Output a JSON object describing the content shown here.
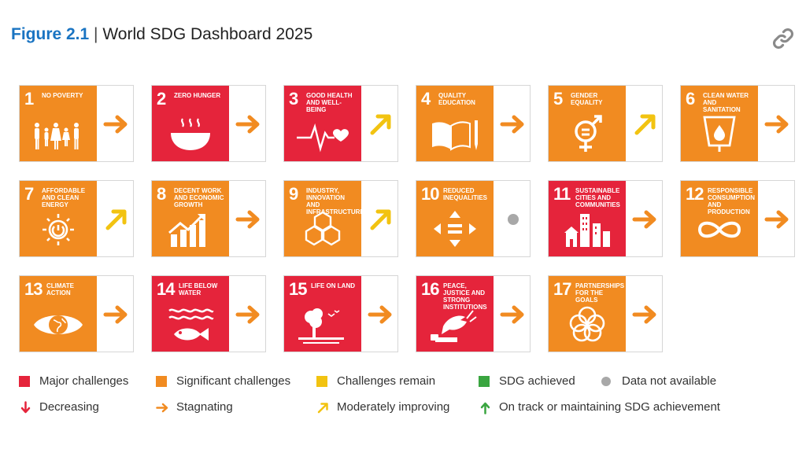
{
  "header": {
    "figure_label": "Figure 2.1",
    "separator": "|",
    "title": "World SDG Dashboard 2025"
  },
  "colors": {
    "major": "#e5243b",
    "significant": "#f18b21",
    "remain": "#f2c311",
    "achieved": "#3aa540",
    "na": "#a8a8a8",
    "decreasing": "#e5243b",
    "stagnating": "#f18b21",
    "improving": "#f2c311",
    "on_track": "#3aa540"
  },
  "chart_data": {
    "type": "table",
    "title": "World SDG Dashboard 2025",
    "goals": [
      {
        "number": "1",
        "name": "NO POVERTY",
        "status": "significant",
        "trend": "stagnating",
        "icon": "family-icon"
      },
      {
        "number": "2",
        "name": "ZERO HUNGER",
        "status": "major",
        "trend": "stagnating",
        "icon": "bowl-icon"
      },
      {
        "number": "3",
        "name": "GOOD HEALTH AND WELL-BEING",
        "status": "major",
        "trend": "improving",
        "icon": "heartbeat-icon"
      },
      {
        "number": "4",
        "name": "QUALITY EDUCATION",
        "status": "significant",
        "trend": "stagnating",
        "icon": "book-icon"
      },
      {
        "number": "5",
        "name": "GENDER EQUALITY",
        "status": "significant",
        "trend": "improving",
        "icon": "gender-icon"
      },
      {
        "number": "6",
        "name": "CLEAN WATER AND SANITATION",
        "status": "significant",
        "trend": "stagnating",
        "icon": "water-icon"
      },
      {
        "number": "7",
        "name": "AFFORDABLE AND CLEAN ENERGY",
        "status": "significant",
        "trend": "improving",
        "icon": "sun-power-icon"
      },
      {
        "number": "8",
        "name": "DECENT WORK AND ECONOMIC GROWTH",
        "status": "significant",
        "trend": "stagnating",
        "icon": "growth-chart-icon"
      },
      {
        "number": "9",
        "name": "INDUSTRY, INNOVATION AND INFRASTRUCTURE",
        "status": "significant",
        "trend": "improving",
        "icon": "cubes-icon"
      },
      {
        "number": "10",
        "name": "REDUCED INEQUALITIES",
        "status": "significant",
        "trend": "na",
        "icon": "equal-arrows-icon"
      },
      {
        "number": "11",
        "name": "SUSTAINABLE CITIES AND COMMUNITIES",
        "status": "major",
        "trend": "stagnating",
        "icon": "city-icon"
      },
      {
        "number": "12",
        "name": "RESPONSIBLE CONSUMPTION AND PRODUCTION",
        "status": "significant",
        "trend": "stagnating",
        "icon": "infinity-icon"
      },
      {
        "number": "13",
        "name": "CLIMATE ACTION",
        "status": "significant",
        "trend": "stagnating",
        "icon": "eye-globe-icon"
      },
      {
        "number": "14",
        "name": "LIFE BELOW WATER",
        "status": "major",
        "trend": "stagnating",
        "icon": "fish-icon"
      },
      {
        "number": "15",
        "name": "LIFE ON LAND",
        "status": "major",
        "trend": "stagnating",
        "icon": "tree-icon"
      },
      {
        "number": "16",
        "name": "PEACE, JUSTICE AND STRONG INSTITUTIONS",
        "status": "major",
        "trend": "stagnating",
        "icon": "dove-icon"
      },
      {
        "number": "17",
        "name": "PARTNERSHIPS FOR THE GOALS",
        "status": "significant",
        "trend": "stagnating",
        "icon": "rings-icon"
      }
    ],
    "legend": {
      "status": [
        {
          "key": "major",
          "label": "Major challenges"
        },
        {
          "key": "significant",
          "label": "Significant challenges"
        },
        {
          "key": "remain",
          "label": "Challenges remain"
        },
        {
          "key": "achieved",
          "label": "SDG achieved"
        },
        {
          "key": "na",
          "label": "Data not available"
        }
      ],
      "trend": [
        {
          "key": "decreasing",
          "label": "Decreasing"
        },
        {
          "key": "stagnating",
          "label": "Stagnating"
        },
        {
          "key": "improving",
          "label": "Moderately improving"
        },
        {
          "key": "on_track",
          "label": "On track or maintaining SDG achievement"
        }
      ]
    }
  }
}
